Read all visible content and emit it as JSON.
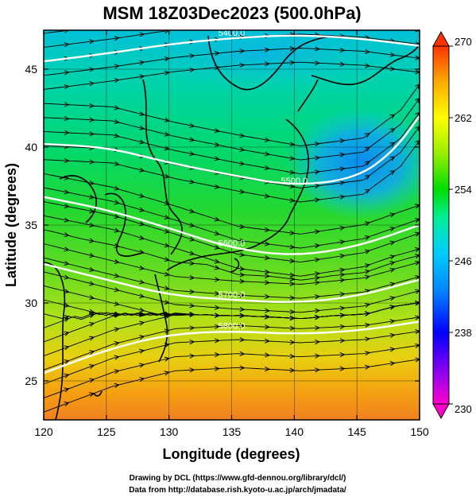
{
  "title": "MSM 18Z03Dec2023 (500.0hPa)",
  "x_axis": {
    "label": "Longitude (degrees)",
    "range": [
      120,
      150
    ],
    "ticks": [
      120,
      125,
      130,
      135,
      140,
      145,
      150
    ]
  },
  "y_axis": {
    "label": "Latitude  (degrees)",
    "range": [
      22.5,
      47.5
    ],
    "ticks": [
      25,
      30,
      35,
      40,
      45
    ]
  },
  "colorbar": {
    "range": [
      230,
      270
    ],
    "tick_labels": [
      "270",
      "262",
      "254",
      "246",
      "238",
      "230"
    ],
    "colors": [
      "#ff00cc",
      "#9900ee",
      "#0000ff",
      "#0088ff",
      "#00ccff",
      "#00ee99",
      "#00dd00",
      "#99ee00",
      "#ffff00",
      "#ffaa00",
      "#ff3300"
    ]
  },
  "height_contours": [
    {
      "label": "5400.0",
      "lat_at_lon": [
        [
          120,
          45.5
        ],
        [
          125,
          46.0
        ],
        [
          130,
          46.6
        ],
        [
          135,
          47.0
        ],
        [
          140,
          47.2
        ],
        [
          145,
          47.0
        ],
        [
          150,
          46.5
        ]
      ]
    },
    {
      "label": "5500.0",
      "lat_at_lon": [
        [
          120,
          40.2
        ],
        [
          125,
          40.0
        ],
        [
          130,
          39.0
        ],
        [
          135,
          38.2
        ],
        [
          140,
          37.5
        ],
        [
          145,
          38.0
        ],
        [
          148,
          39.8
        ],
        [
          150,
          42.0
        ]
      ]
    },
    {
      "label": "5600.0",
      "lat_at_lon": [
        [
          120,
          36.8
        ],
        [
          125,
          36.0
        ],
        [
          130,
          34.8
        ],
        [
          135,
          33.5
        ],
        [
          140,
          33.0
        ],
        [
          145,
          33.6
        ],
        [
          150,
          35.0
        ]
      ]
    },
    {
      "label": "5700.0",
      "lat_at_lon": [
        [
          120,
          32.5
        ],
        [
          125,
          31.5
        ],
        [
          130,
          30.5
        ],
        [
          135,
          30.2
        ],
        [
          140,
          30.0
        ],
        [
          145,
          30.4
        ],
        [
          150,
          31.5
        ]
      ]
    },
    {
      "label": "5800.0",
      "lat_at_lon": [
        [
          120,
          25.5
        ],
        [
          125,
          27.0
        ],
        [
          130,
          28.0
        ],
        [
          135,
          28.2
        ],
        [
          140,
          28.0
        ],
        [
          145,
          28.2
        ],
        [
          150,
          28.8
        ]
      ]
    }
  ],
  "credits": {
    "line1": "Drawing by DCL (https://www.gfd-dennou.org/library/dcl/)",
    "line2": "Data from http://database.rish.kyoto-u.ac.jp/arch/jmadata/"
  }
}
